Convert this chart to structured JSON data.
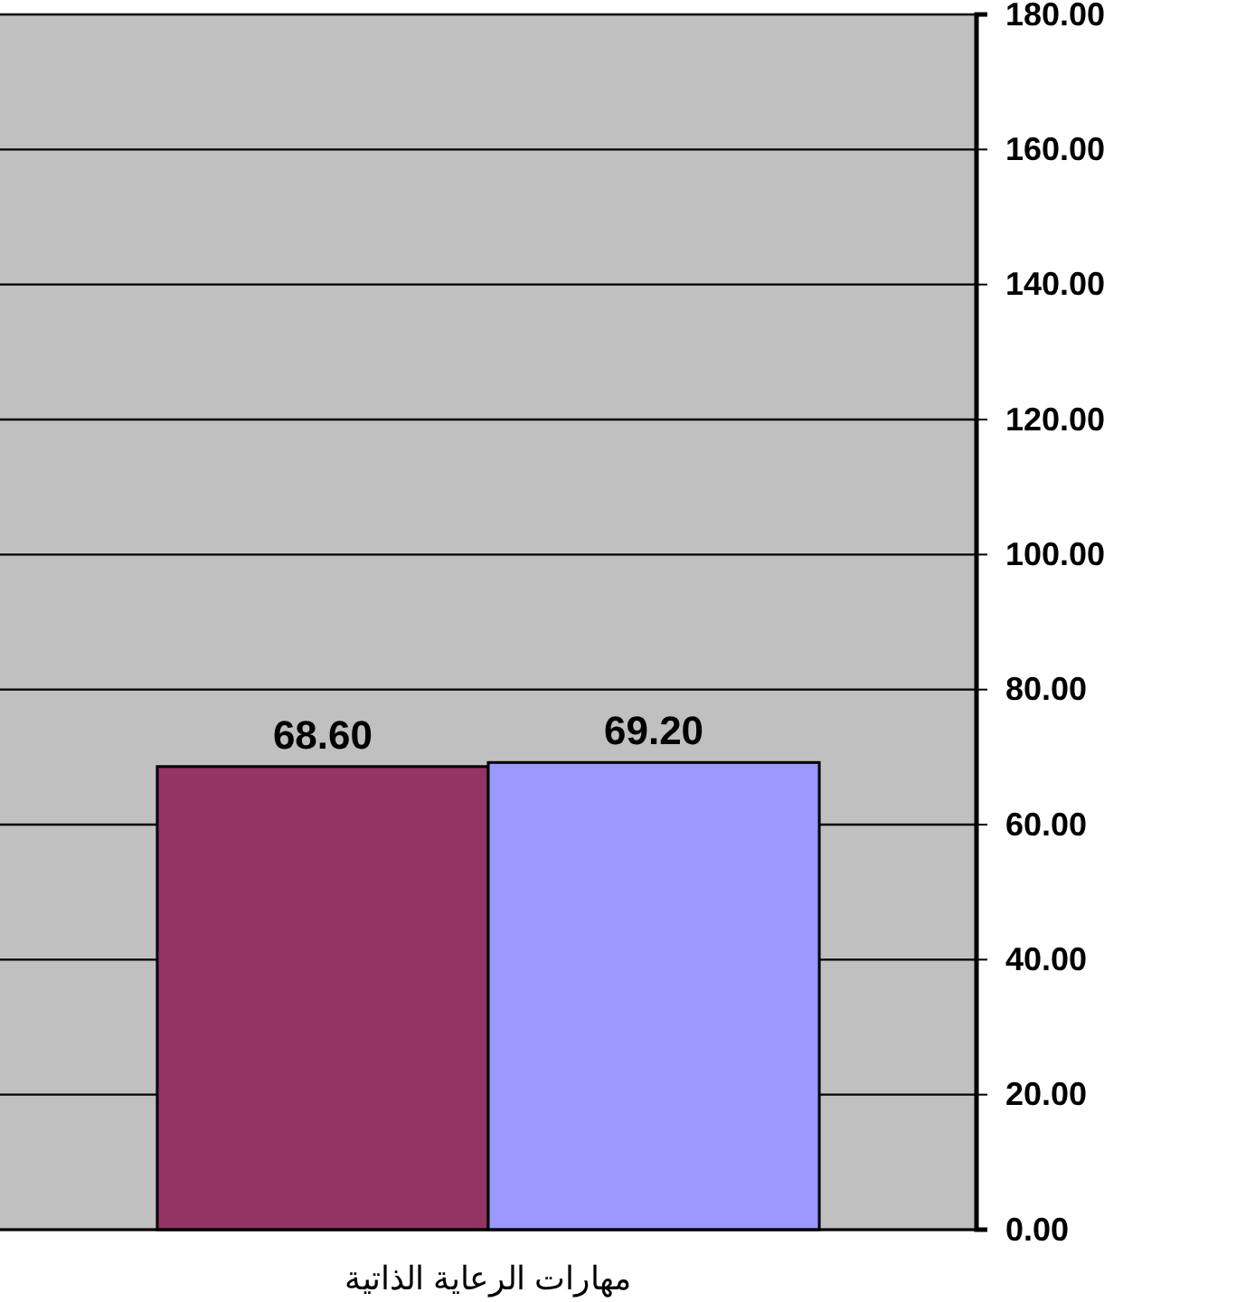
{
  "chart_data": {
    "type": "bar",
    "categories": [
      "مهارات الرعاية الذاتية"
    ],
    "series": [
      {
        "color": "#943462",
        "values": [
          68.6
        ],
        "value_labels": [
          "68.60"
        ]
      },
      {
        "color": "#9999ff",
        "values": [
          69.2
        ],
        "value_labels": [
          "69.20"
        ]
      }
    ],
    "ylim": [
      0,
      180
    ],
    "yticks": [
      {
        "value": 0,
        "label": "0.00"
      },
      {
        "value": 20,
        "label": "20.00"
      },
      {
        "value": 40,
        "label": "40.00"
      },
      {
        "value": 60,
        "label": "60.00"
      },
      {
        "value": 80,
        "label": "80.00"
      },
      {
        "value": 100,
        "label": "100.00"
      },
      {
        "value": 120,
        "label": "120.00"
      },
      {
        "value": 140,
        "label": "140.00"
      },
      {
        "value": 160,
        "label": "160.00"
      },
      {
        "value": 180,
        "label": "180.00"
      }
    ],
    "grid": "y"
  }
}
